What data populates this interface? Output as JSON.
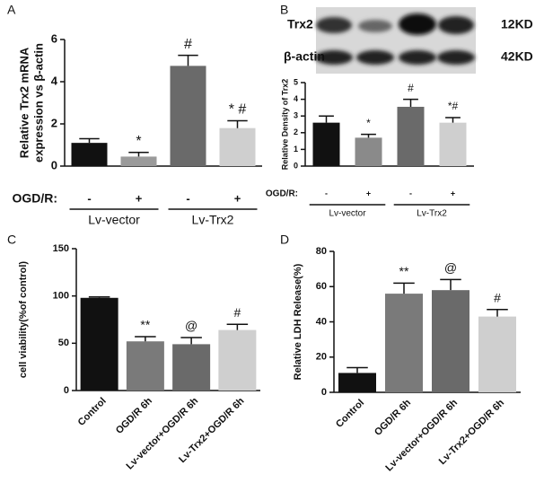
{
  "chart_data": [
    {
      "type": "bar",
      "panel": "A",
      "ylabel": [
        "Relative Trx2 mRNA",
        "expression vs β-actin"
      ],
      "categories": [
        "-",
        "+",
        "-",
        "+"
      ],
      "x_row_label": "OGD/R:",
      "groups": [
        "Lv-vector",
        "Lv-Trx2"
      ],
      "values": [
        1.1,
        0.45,
        4.75,
        1.8
      ],
      "errors": [
        0.2,
        0.2,
        0.5,
        0.35
      ],
      "colors": [
        "#111111",
        "#9a9a9a",
        "#6a6a6a",
        "#cfcfcf"
      ],
      "annotations": [
        null,
        "*",
        "#",
        "* #"
      ],
      "ylim": [
        0,
        6
      ],
      "yticks": [
        0,
        2,
        4,
        6
      ]
    },
    {
      "type": "bar",
      "panel": "B",
      "ylabel": "Relative Density of Trx2",
      "blot": {
        "rows": [
          "Trx2",
          "β-actin"
        ],
        "sizes": [
          "12KD",
          "42KD"
        ]
      },
      "categories": [
        "-",
        "+",
        "-",
        "+"
      ],
      "x_row_label": "OGD/R:",
      "groups": [
        "Lv-vector",
        "Lv-Trx2"
      ],
      "values": [
        2.6,
        1.7,
        3.55,
        2.6
      ],
      "errors": [
        0.4,
        0.2,
        0.45,
        0.3
      ],
      "colors": [
        "#111111",
        "#8a8a8a",
        "#6a6a6a",
        "#cfcfcf"
      ],
      "annotations": [
        null,
        "*",
        "#",
        "*#"
      ],
      "ylim": [
        0,
        5
      ],
      "yticks": [
        0,
        1,
        2,
        3,
        4,
        5
      ]
    },
    {
      "type": "bar",
      "panel": "C",
      "ylabel": "cell viability(%of control)",
      "categories": [
        "Control",
        "OGD/R 6h",
        "Lv-vector+OGD/R 6h",
        "Lv-Trx2+OGD/R 6h"
      ],
      "values": [
        98,
        52,
        49,
        64
      ],
      "errors": [
        1,
        5,
        7,
        6
      ],
      "colors": [
        "#111111",
        "#7a7a7a",
        "#6a6a6a",
        "#cfcfcf"
      ],
      "annotations": [
        null,
        "**",
        "@",
        "#"
      ],
      "ylim": [
        0,
        150
      ],
      "yticks": [
        0,
        50,
        100,
        150
      ]
    },
    {
      "type": "bar",
      "panel": "D",
      "ylabel": "Relative LDH Release(%)",
      "categories": [
        "Control",
        "OGD/R 6h",
        "Lv-vector+OGD/R 6h",
        "Lv-Trx2+OGD/R 6h"
      ],
      "values": [
        11,
        56,
        58,
        43
      ],
      "errors": [
        3,
        6,
        6,
        4
      ],
      "colors": [
        "#111111",
        "#7a7a7a",
        "#6a6a6a",
        "#cfcfcf"
      ],
      "annotations": [
        null,
        "**",
        "@",
        "#"
      ],
      "ylim": [
        0,
        80
      ],
      "yticks": [
        0,
        20,
        40,
        60,
        80
      ]
    }
  ]
}
